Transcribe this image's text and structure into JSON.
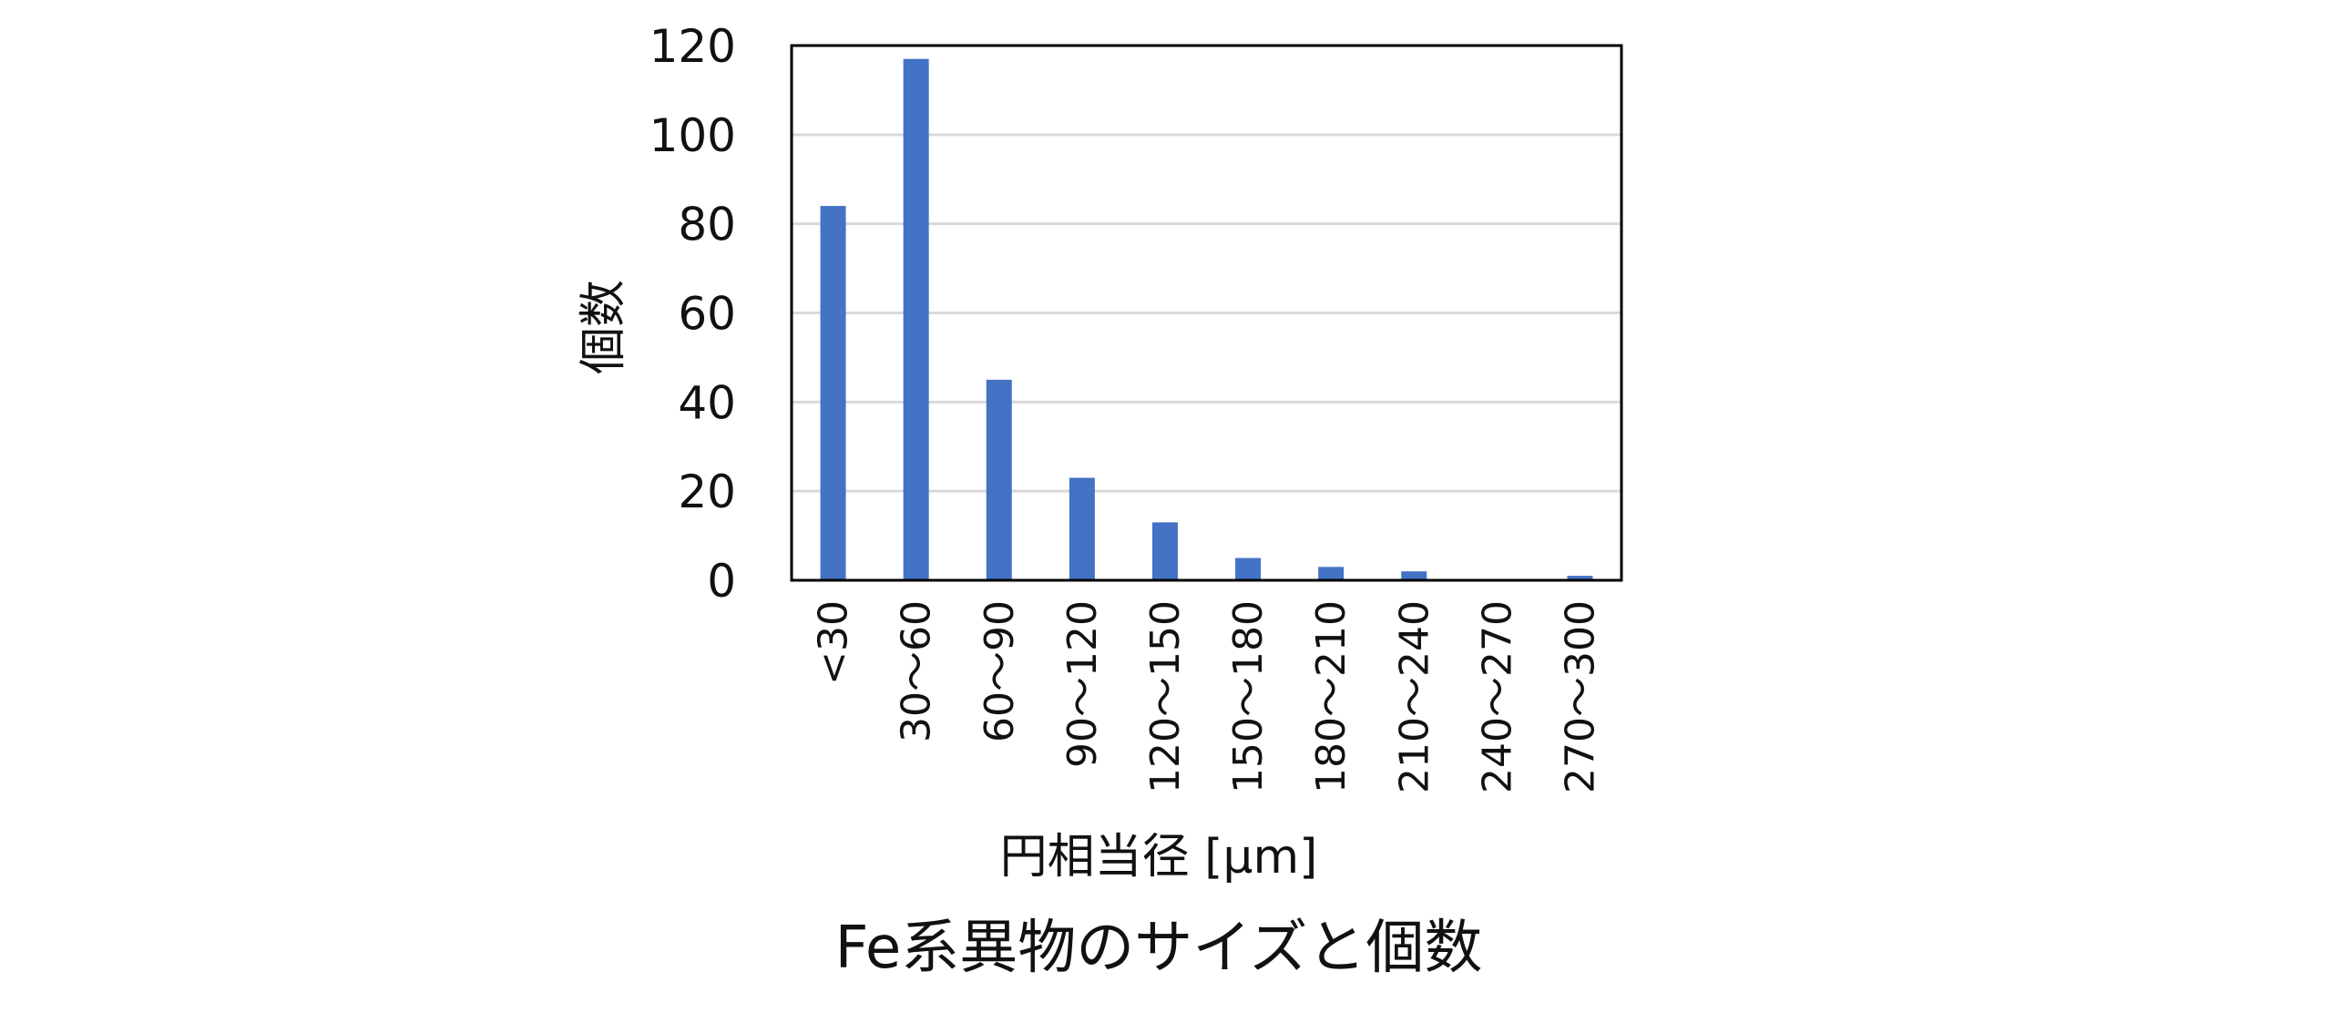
{
  "chart_data": {
    "type": "bar",
    "title": "Fe系異物のサイズと個数",
    "xlabel": "円相当径 [μm]",
    "ylabel": "個数",
    "categories": [
      "<30",
      "30～60",
      "60～90",
      "90～120",
      "120～150",
      "150～180",
      "180～210",
      "210～240",
      "240～270",
      "270～300"
    ],
    "values": [
      84,
      117,
      45,
      23,
      13,
      5,
      3,
      2,
      0,
      1
    ],
    "ylim": [
      0,
      120
    ],
    "yticks": [
      0,
      20,
      40,
      60,
      80,
      100,
      120
    ],
    "grid": true,
    "legend": "none",
    "colors": {
      "bar": "#4472C4",
      "grid": "#d9d9d9",
      "frame": "#000000"
    }
  }
}
